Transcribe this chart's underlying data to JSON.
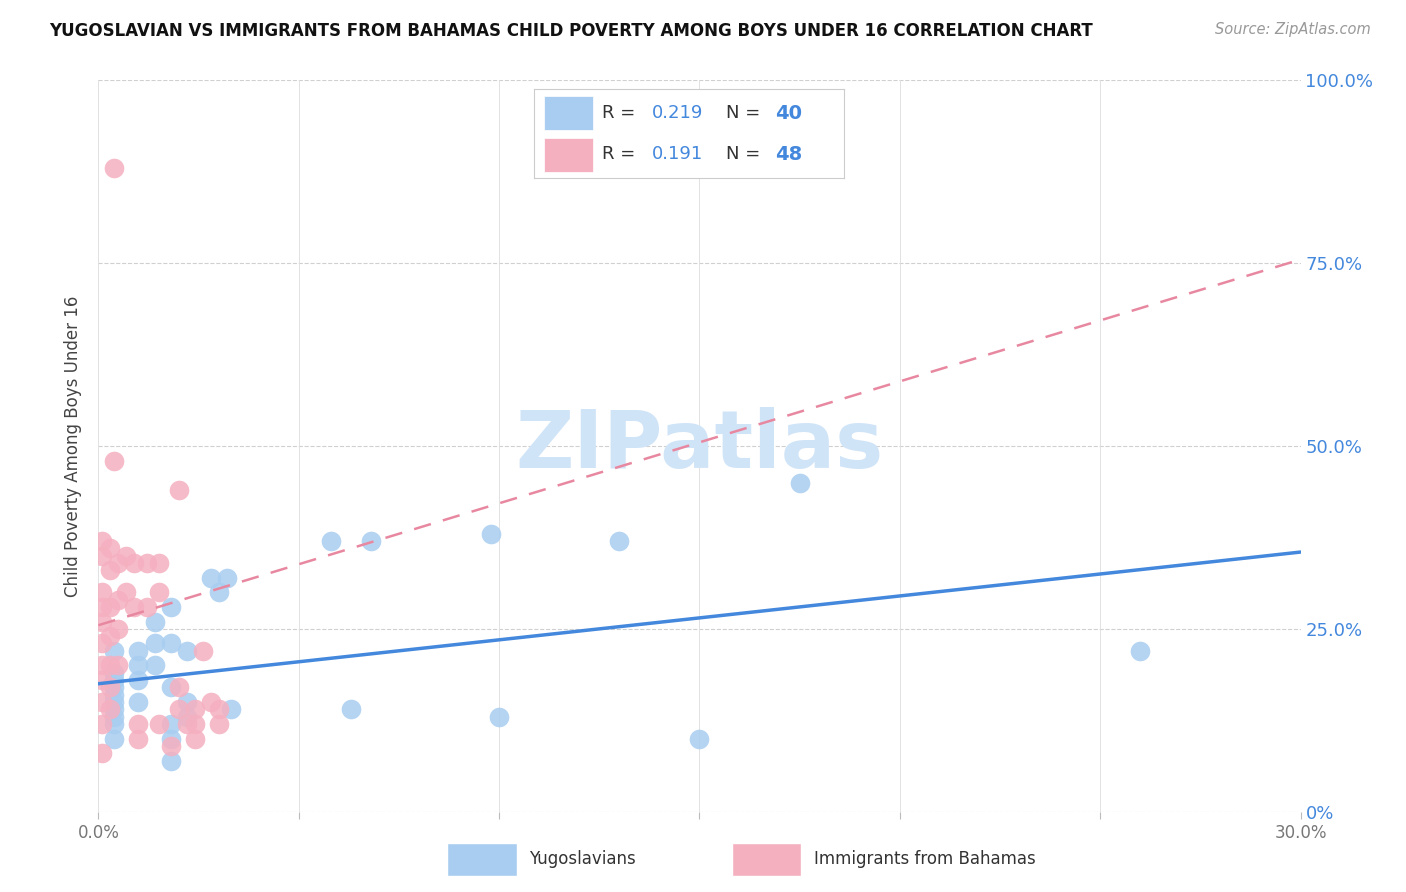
{
  "title": "YUGOSLAVIAN VS IMMIGRANTS FROM BAHAMAS CHILD POVERTY AMONG BOYS UNDER 16 CORRELATION CHART",
  "source": "Source: ZipAtlas.com",
  "ylabel": "Child Poverty Among Boys Under 16",
  "xmin": 0.0,
  "xmax": 0.3,
  "ymin": 0.0,
  "ymax": 1.0,
  "xticks": [
    0.0,
    0.05,
    0.1,
    0.15,
    0.2,
    0.25,
    0.3
  ],
  "yticks": [
    0.0,
    0.25,
    0.5,
    0.75,
    1.0
  ],
  "ytick_labels": [
    "0%",
    "25.0%",
    "50.0%",
    "75.0%",
    "100.0%"
  ],
  "r1": "0.219",
  "n1": "40",
  "r2": "0.191",
  "n2": "48",
  "blue_scatter_color": "#a8cdf0",
  "pink_scatter_color": "#f5b0c0",
  "trend_blue_color": "#4488dd",
  "trend_pink_color": "#e888a0",
  "legend_text_color": "#4488dd",
  "axis_label_color": "#4488dd",
  "watermark": "ZIPatlas",
  "watermark_color": "#d0e4f8",
  "series1_label": "Yugoslavians",
  "series2_label": "Immigrants from Bahamas",
  "blue_scatter": [
    [
      0.004,
      0.19
    ],
    [
      0.004,
      0.14
    ],
    [
      0.004,
      0.17
    ],
    [
      0.004,
      0.15
    ],
    [
      0.004,
      0.22
    ],
    [
      0.004,
      0.16
    ],
    [
      0.004,
      0.18
    ],
    [
      0.004,
      0.13
    ],
    [
      0.004,
      0.1
    ],
    [
      0.004,
      0.12
    ],
    [
      0.01,
      0.2
    ],
    [
      0.01,
      0.18
    ],
    [
      0.01,
      0.22
    ],
    [
      0.01,
      0.15
    ],
    [
      0.014,
      0.26
    ],
    [
      0.014,
      0.2
    ],
    [
      0.014,
      0.23
    ],
    [
      0.018,
      0.23
    ],
    [
      0.018,
      0.28
    ],
    [
      0.018,
      0.17
    ],
    [
      0.018,
      0.1
    ],
    [
      0.018,
      0.12
    ],
    [
      0.018,
      0.07
    ],
    [
      0.022,
      0.22
    ],
    [
      0.022,
      0.15
    ],
    [
      0.022,
      0.13
    ],
    [
      0.028,
      0.32
    ],
    [
      0.03,
      0.3
    ],
    [
      0.032,
      0.32
    ],
    [
      0.033,
      0.14
    ],
    [
      0.058,
      0.37
    ],
    [
      0.068,
      0.37
    ],
    [
      0.063,
      0.14
    ],
    [
      0.098,
      0.38
    ],
    [
      0.1,
      0.13
    ],
    [
      0.13,
      0.37
    ],
    [
      0.15,
      0.1
    ],
    [
      0.175,
      0.45
    ],
    [
      0.26,
      0.22
    ]
  ],
  "pink_scatter": [
    [
      0.001,
      0.37
    ],
    [
      0.001,
      0.35
    ],
    [
      0.001,
      0.3
    ],
    [
      0.001,
      0.28
    ],
    [
      0.001,
      0.26
    ],
    [
      0.001,
      0.23
    ],
    [
      0.001,
      0.2
    ],
    [
      0.001,
      0.18
    ],
    [
      0.001,
      0.15
    ],
    [
      0.001,
      0.12
    ],
    [
      0.001,
      0.08
    ],
    [
      0.003,
      0.36
    ],
    [
      0.003,
      0.33
    ],
    [
      0.003,
      0.28
    ],
    [
      0.003,
      0.24
    ],
    [
      0.003,
      0.2
    ],
    [
      0.003,
      0.17
    ],
    [
      0.003,
      0.14
    ],
    [
      0.005,
      0.34
    ],
    [
      0.005,
      0.29
    ],
    [
      0.005,
      0.25
    ],
    [
      0.005,
      0.2
    ],
    [
      0.007,
      0.35
    ],
    [
      0.007,
      0.3
    ],
    [
      0.009,
      0.34
    ],
    [
      0.009,
      0.28
    ],
    [
      0.012,
      0.34
    ],
    [
      0.012,
      0.28
    ],
    [
      0.015,
      0.34
    ],
    [
      0.015,
      0.3
    ],
    [
      0.02,
      0.44
    ],
    [
      0.024,
      0.12
    ],
    [
      0.024,
      0.1
    ],
    [
      0.01,
      0.12
    ],
    [
      0.01,
      0.1
    ],
    [
      0.015,
      0.12
    ],
    [
      0.004,
      0.48
    ],
    [
      0.004,
      0.88
    ],
    [
      0.02,
      0.14
    ],
    [
      0.024,
      0.14
    ],
    [
      0.03,
      0.14
    ],
    [
      0.03,
      0.12
    ],
    [
      0.02,
      0.17
    ],
    [
      0.028,
      0.15
    ],
    [
      0.022,
      0.12
    ],
    [
      0.018,
      0.09
    ],
    [
      0.026,
      0.22
    ]
  ],
  "blue_trend_x": [
    0.0,
    0.3
  ],
  "blue_trend_y": [
    0.175,
    0.355
  ],
  "pink_trend_x": [
    0.0,
    0.3
  ],
  "pink_trend_y": [
    0.255,
    0.755
  ]
}
